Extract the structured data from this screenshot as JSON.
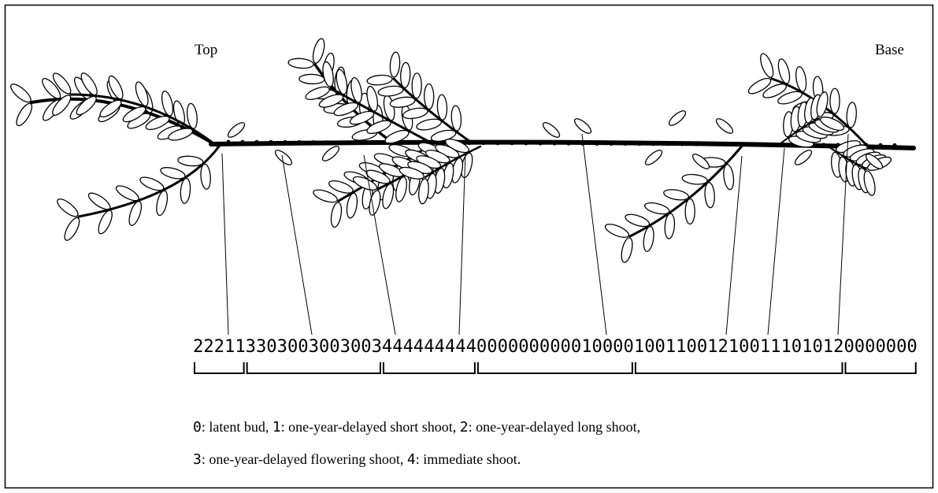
{
  "labels": {
    "top": "Top",
    "base": "Base"
  },
  "sequence": {
    "segments": [
      "22211",
      "3303003003003",
      "444444444",
      "000000000010000",
      "10011001210011101012",
      "0000000"
    ]
  },
  "legend": {
    "lines": [
      [
        {
          "code": "0",
          "text": ": latent bud, "
        },
        {
          "code": "1",
          "text": ": one-year-delayed short shoot, "
        },
        {
          "code": "2",
          "text": ": one-year-delayed long shoot,"
        }
      ],
      [
        {
          "code": "3",
          "text": ": one-year-delayed flowering shoot, "
        },
        {
          "code": "4",
          "text": ": immediate shoot."
        }
      ]
    ]
  }
}
